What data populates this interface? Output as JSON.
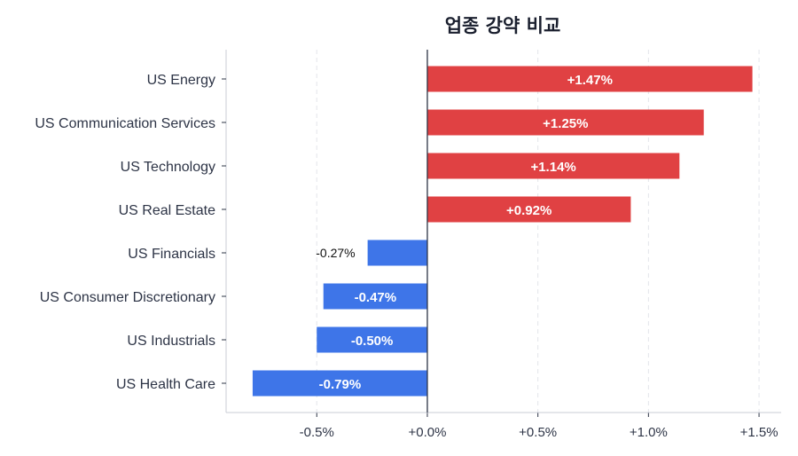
{
  "chart_data": {
    "type": "bar",
    "orientation": "horizontal",
    "title": "업종 강약 비교",
    "categories": [
      "US Energy",
      "US Communication Services",
      "US Technology",
      "US Real Estate",
      "US Financials",
      "US Consumer Discretionary",
      "US Industrials",
      "US Health Care"
    ],
    "values": [
      1.47,
      1.25,
      1.14,
      0.92,
      -0.27,
      -0.47,
      -0.5,
      -0.79
    ],
    "data_labels": [
      "+1.47%",
      "+1.25%",
      "+1.14%",
      "+0.92%",
      "-0.27%",
      "-0.47%",
      "-0.50%",
      "-0.79%"
    ],
    "xlabel": "",
    "ylabel": "",
    "xlim": [
      -0.91,
      1.6
    ],
    "xticks": [
      -0.5,
      0,
      0.5,
      1.0,
      1.5
    ],
    "xtick_labels": [
      "-0.5%",
      "+0.0%",
      "+0.5%",
      "+1.0%",
      "+1.5%"
    ],
    "grid": "vertical dashed",
    "colors": {
      "positive": "#e04143",
      "negative": "#3e75e8",
      "zero_line": "#2d3446"
    }
  }
}
